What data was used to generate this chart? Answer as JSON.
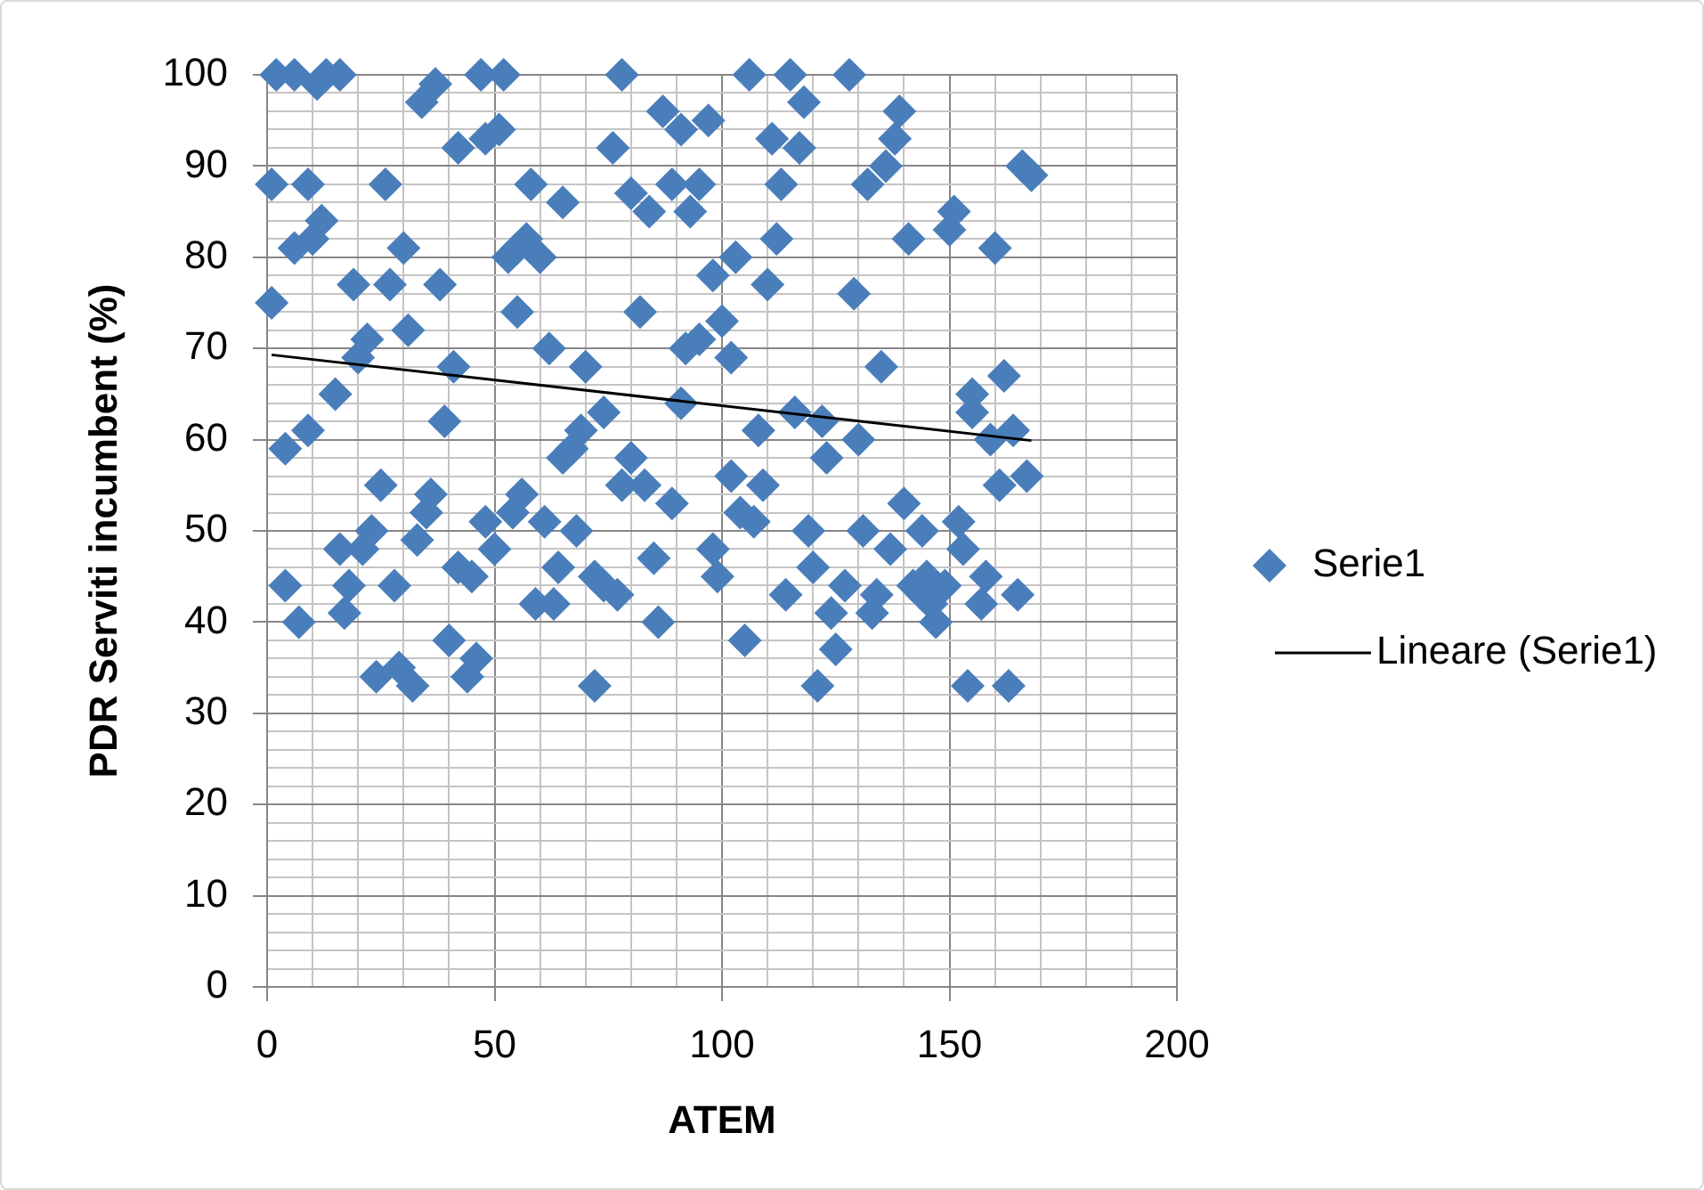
{
  "chart_data": {
    "type": "scatter",
    "xlabel": "ATEM",
    "ylabel": "PDR Serviti incumbent (%)",
    "xlim": [
      0,
      200
    ],
    "xticks": [
      0,
      {
        "value": 10,
        "label": null
      },
      {
        "value": 20,
        "label": null
      },
      {
        "value": 30,
        "label": null
      },
      {
        "value": 40,
        "label": null
      },
      50,
      {
        "value": 60,
        "label": null
      },
      {
        "value": 70,
        "label": null
      },
      {
        "value": 80,
        "label": null
      },
      {
        "value": 90,
        "label": null
      },
      100,
      {
        "value": 110,
        "label": null
      },
      {
        "value": 120,
        "label": null
      },
      {
        "value": 130,
        "label": null
      },
      {
        "value": 140,
        "label": null
      },
      150,
      {
        "value": 160,
        "label": null
      },
      {
        "value": 170,
        "label": null
      },
      {
        "value": 180,
        "label": null
      },
      {
        "value": 190,
        "label": null
      },
      200
    ],
    "ylim": [
      0,
      100
    ],
    "yticks": [
      0,
      {
        "value": 2,
        "label": null
      },
      {
        "value": 4,
        "label": null
      },
      {
        "value": 6,
        "label": null
      },
      {
        "value": 8,
        "label": null
      },
      10,
      {
        "value": 12,
        "label": null
      },
      {
        "value": 14,
        "label": null
      },
      {
        "value": 16,
        "label": null
      },
      {
        "value": 18,
        "label": null
      },
      20,
      {
        "value": 22,
        "label": null
      },
      {
        "value": 24,
        "label": null
      },
      {
        "value": 26,
        "label": null
      },
      {
        "value": 28,
        "label": null
      },
      30,
      {
        "value": 32,
        "label": null
      },
      {
        "value": 34,
        "label": null
      },
      {
        "value": 36,
        "label": null
      },
      {
        "value": 38,
        "label": null
      },
      40,
      {
        "value": 42,
        "label": null
      },
      {
        "value": 44,
        "label": null
      },
      {
        "value": 46,
        "label": null
      },
      {
        "value": 48,
        "label": null
      },
      50,
      {
        "value": 52,
        "label": null
      },
      {
        "value": 54,
        "label": null
      },
      {
        "value": 56,
        "label": null
      },
      {
        "value": 58,
        "label": null
      },
      60,
      {
        "value": 62,
        "label": null
      },
      {
        "value": 64,
        "label": null
      },
      {
        "value": 66,
        "label": null
      },
      {
        "value": 68,
        "label": null
      },
      70,
      {
        "value": 72,
        "label": null
      },
      {
        "value": 74,
        "label": null
      },
      {
        "value": 76,
        "label": null
      },
      {
        "value": 78,
        "label": null
      },
      80,
      {
        "value": 82,
        "label": null
      },
      {
        "value": 84,
        "label": null
      },
      {
        "value": 86,
        "label": null
      },
      {
        "value": 88,
        "label": null
      },
      90,
      {
        "value": 92,
        "label": null
      },
      {
        "value": 94,
        "label": null
      },
      {
        "value": 96,
        "label": null
      },
      {
        "value": 98,
        "label": null
      },
      100
    ],
    "grid": true,
    "legend": "right",
    "marker": "diamond",
    "series": [
      {
        "name": "Serie1",
        "color": "#4a7ebb",
        "x": [
          2,
          6,
          11,
          13,
          16,
          37,
          34,
          47,
          52,
          78,
          42,
          48,
          51,
          76,
          87,
          91,
          97,
          1,
          9,
          26,
          58,
          65,
          80,
          84,
          89,
          95,
          93,
          12,
          10,
          6,
          30,
          53,
          57,
          60,
          55,
          19,
          27,
          38,
          98,
          1,
          55,
          82,
          22,
          31,
          20,
          62,
          70,
          92,
          95,
          41,
          15,
          74,
          91,
          39,
          106,
          115,
          128,
          118,
          139,
          111,
          117,
          138,
          136,
          132,
          113,
          166,
          168,
          151,
          150,
          160,
          141,
          112,
          103,
          110,
          129,
          100,
          102,
          135,
          155,
          162,
          116,
          122,
          155,
          9,
          4,
          69,
          67,
          65,
          80,
          78,
          83,
          89,
          25,
          36,
          35,
          33,
          23,
          16,
          21,
          48,
          50,
          56,
          54,
          61,
          68,
          64,
          72,
          74,
          77,
          59,
          63,
          42,
          45,
          28,
          18,
          4,
          17,
          7,
          85,
          86,
          40,
          46,
          44,
          24,
          29,
          32,
          72,
          98,
          99,
          102,
          109,
          104,
          107,
          108,
          123,
          130,
          119,
          131,
          140,
          137,
          144,
          152,
          153,
          120,
          127,
          114,
          124,
          134,
          133,
          142,
          145,
          149,
          146,
          147,
          144,
          158,
          157,
          165,
          125,
          105,
          121,
          154,
          163,
          161,
          167,
          159,
          164
        ],
        "values": [
          100,
          100,
          99,
          100,
          100,
          99,
          97,
          100,
          100,
          100,
          92,
          93,
          94,
          92,
          96,
          94,
          95,
          88,
          88,
          88,
          88,
          86,
          87,
          85,
          88,
          88,
          85,
          84,
          82,
          81,
          81,
          80,
          82,
          80,
          81,
          77,
          77,
          77,
          78,
          75,
          74,
          74,
          71,
          72,
          69,
          70,
          68,
          70,
          71,
          68,
          65,
          63,
          64,
          62,
          100,
          100,
          100,
          97,
          96,
          93,
          92,
          93,
          90,
          88,
          88,
          90,
          89,
          85,
          83,
          81,
          82,
          82,
          80,
          77,
          76,
          73,
          69,
          68,
          65,
          67,
          63,
          62,
          63,
          61,
          59,
          61,
          59,
          58,
          58,
          55,
          55,
          53,
          55,
          54,
          52,
          49,
          50,
          48,
          48,
          51,
          48,
          54,
          52,
          51,
          50,
          46,
          45,
          44,
          43,
          42,
          42,
          46,
          45,
          44,
          44,
          44,
          41,
          40,
          47,
          40,
          38,
          36,
          34,
          34,
          35,
          33,
          33,
          48,
          45,
          56,
          55,
          52,
          51,
          61,
          58,
          60,
          50,
          50,
          53,
          48,
          50,
          51,
          48,
          46,
          44,
          43,
          41,
          43,
          41,
          44,
          45,
          44,
          42,
          40,
          43,
          45,
          42,
          43,
          37,
          38,
          33,
          33,
          33,
          55,
          56,
          60,
          61
        ]
      },
      {
        "name": "Lineare (Serie1)",
        "type": "line",
        "color": "#000000",
        "marker": "none",
        "x": [
          1,
          168
        ],
        "values": [
          69.3,
          59.9
        ]
      }
    ]
  }
}
